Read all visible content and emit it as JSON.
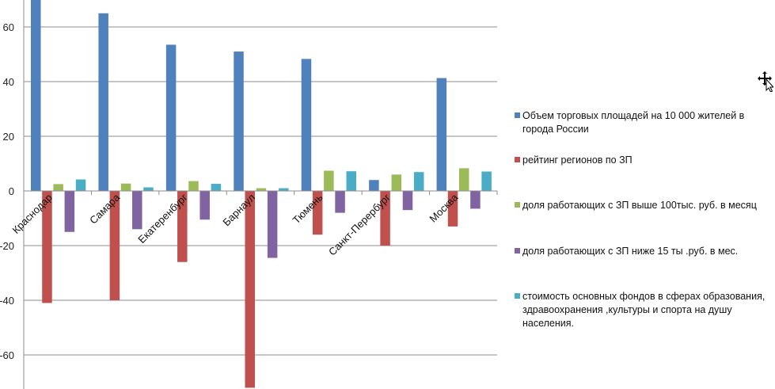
{
  "chart_data": {
    "type": "bar",
    "title": "",
    "xlabel": "",
    "ylabel": "",
    "ylim": [
      -72,
      72
    ],
    "yticks": [
      60,
      40,
      20,
      0,
      -20,
      -40,
      -60
    ],
    "grid": true,
    "legend_position": "right",
    "categories": [
      "Краснодар",
      "Самара",
      "Екатеренбург",
      "Барнаул",
      "Тюмень",
      "Санкт-Перербург",
      "Москва"
    ],
    "series": [
      {
        "name": "Объем торговых площадей на 10 000 жителей в города России",
        "color": "#4f81bd",
        "values": [
          72,
          65,
          53.5,
          51,
          48.3,
          4,
          41.3
        ]
      },
      {
        "name": "рейтинг регионов по ЗП",
        "color": "#c0504d",
        "values": [
          -41,
          -40,
          -26,
          -72,
          -16,
          -20,
          -13
        ]
      },
      {
        "name": "доля работающих с ЗП выше 100тыс. руб. в месяц",
        "color": "#9bbb59",
        "values": [
          2.5,
          2.7,
          3.6,
          1,
          7.4,
          6,
          8.3
        ]
      },
      {
        "name": "доля работающих с ЗП ниже 15 ты .руб. в мес.",
        "color": "#8064a2",
        "values": [
          -15,
          -14,
          -10.5,
          -24.5,
          -8,
          -7,
          -6.5
        ]
      },
      {
        "name": "стоимость основных фондов в сферах образования, здравоохранения ,культуры и спорта на душу населения.",
        "color": "#4bacc6",
        "values": [
          4.2,
          1.3,
          2.6,
          1,
          7.2,
          6.9,
          7.1
        ]
      }
    ]
  },
  "legend": {
    "lines": [
      [
        "Объем торговых площадей на 10 000 жителей в",
        "города России"
      ],
      [
        "рейтинг регионов по ЗП"
      ],
      [
        "доля работающих с ЗП выше 100тыс. руб. в месяц"
      ],
      [
        "доля работающих с ЗП ниже 15 ты .руб. в мес."
      ],
      [
        "стоимость основных фондов в сферах образования,",
        "здравоохранения ,культуры и спорта на душу",
        "населения."
      ]
    ]
  }
}
